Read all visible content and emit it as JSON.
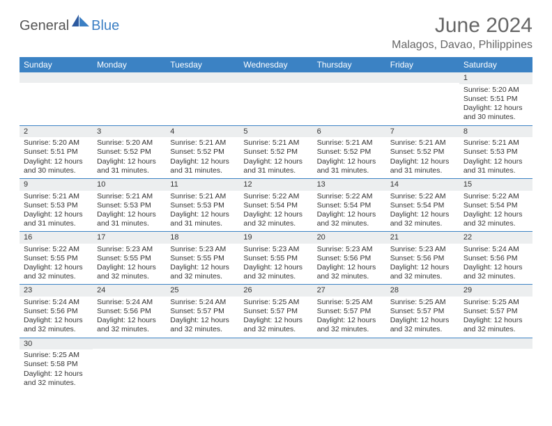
{
  "logo": {
    "general": "General",
    "blue": "Blue"
  },
  "header": {
    "title": "June 2024",
    "location": "Malagos, Davao, Philippines"
  },
  "colors": {
    "header_bg": "#3b82c4",
    "header_text": "#ffffff",
    "daynum_bg": "#eceeef",
    "border": "#3b82c4",
    "logo_blue": "#3b7fc4",
    "text": "#333333",
    "title_text": "#666666"
  },
  "dayLabels": [
    "Sunday",
    "Monday",
    "Tuesday",
    "Wednesday",
    "Thursday",
    "Friday",
    "Saturday"
  ],
  "weeks": [
    [
      {
        "n": "",
        "c": ""
      },
      {
        "n": "",
        "c": ""
      },
      {
        "n": "",
        "c": ""
      },
      {
        "n": "",
        "c": ""
      },
      {
        "n": "",
        "c": ""
      },
      {
        "n": "",
        "c": ""
      },
      {
        "n": "1",
        "c": "Sunrise: 5:20 AM\nSunset: 5:51 PM\nDaylight: 12 hours and 30 minutes."
      }
    ],
    [
      {
        "n": "2",
        "c": "Sunrise: 5:20 AM\nSunset: 5:51 PM\nDaylight: 12 hours and 30 minutes."
      },
      {
        "n": "3",
        "c": "Sunrise: 5:20 AM\nSunset: 5:52 PM\nDaylight: 12 hours and 31 minutes."
      },
      {
        "n": "4",
        "c": "Sunrise: 5:21 AM\nSunset: 5:52 PM\nDaylight: 12 hours and 31 minutes."
      },
      {
        "n": "5",
        "c": "Sunrise: 5:21 AM\nSunset: 5:52 PM\nDaylight: 12 hours and 31 minutes."
      },
      {
        "n": "6",
        "c": "Sunrise: 5:21 AM\nSunset: 5:52 PM\nDaylight: 12 hours and 31 minutes."
      },
      {
        "n": "7",
        "c": "Sunrise: 5:21 AM\nSunset: 5:52 PM\nDaylight: 12 hours and 31 minutes."
      },
      {
        "n": "8",
        "c": "Sunrise: 5:21 AM\nSunset: 5:53 PM\nDaylight: 12 hours and 31 minutes."
      }
    ],
    [
      {
        "n": "9",
        "c": "Sunrise: 5:21 AM\nSunset: 5:53 PM\nDaylight: 12 hours and 31 minutes."
      },
      {
        "n": "10",
        "c": "Sunrise: 5:21 AM\nSunset: 5:53 PM\nDaylight: 12 hours and 31 minutes."
      },
      {
        "n": "11",
        "c": "Sunrise: 5:21 AM\nSunset: 5:53 PM\nDaylight: 12 hours and 31 minutes."
      },
      {
        "n": "12",
        "c": "Sunrise: 5:22 AM\nSunset: 5:54 PM\nDaylight: 12 hours and 32 minutes."
      },
      {
        "n": "13",
        "c": "Sunrise: 5:22 AM\nSunset: 5:54 PM\nDaylight: 12 hours and 32 minutes."
      },
      {
        "n": "14",
        "c": "Sunrise: 5:22 AM\nSunset: 5:54 PM\nDaylight: 12 hours and 32 minutes."
      },
      {
        "n": "15",
        "c": "Sunrise: 5:22 AM\nSunset: 5:54 PM\nDaylight: 12 hours and 32 minutes."
      }
    ],
    [
      {
        "n": "16",
        "c": "Sunrise: 5:22 AM\nSunset: 5:55 PM\nDaylight: 12 hours and 32 minutes."
      },
      {
        "n": "17",
        "c": "Sunrise: 5:23 AM\nSunset: 5:55 PM\nDaylight: 12 hours and 32 minutes."
      },
      {
        "n": "18",
        "c": "Sunrise: 5:23 AM\nSunset: 5:55 PM\nDaylight: 12 hours and 32 minutes."
      },
      {
        "n": "19",
        "c": "Sunrise: 5:23 AM\nSunset: 5:55 PM\nDaylight: 12 hours and 32 minutes."
      },
      {
        "n": "20",
        "c": "Sunrise: 5:23 AM\nSunset: 5:56 PM\nDaylight: 12 hours and 32 minutes."
      },
      {
        "n": "21",
        "c": "Sunrise: 5:23 AM\nSunset: 5:56 PM\nDaylight: 12 hours and 32 minutes."
      },
      {
        "n": "22",
        "c": "Sunrise: 5:24 AM\nSunset: 5:56 PM\nDaylight: 12 hours and 32 minutes."
      }
    ],
    [
      {
        "n": "23",
        "c": "Sunrise: 5:24 AM\nSunset: 5:56 PM\nDaylight: 12 hours and 32 minutes."
      },
      {
        "n": "24",
        "c": "Sunrise: 5:24 AM\nSunset: 5:56 PM\nDaylight: 12 hours and 32 minutes."
      },
      {
        "n": "25",
        "c": "Sunrise: 5:24 AM\nSunset: 5:57 PM\nDaylight: 12 hours and 32 minutes."
      },
      {
        "n": "26",
        "c": "Sunrise: 5:25 AM\nSunset: 5:57 PM\nDaylight: 12 hours and 32 minutes."
      },
      {
        "n": "27",
        "c": "Sunrise: 5:25 AM\nSunset: 5:57 PM\nDaylight: 12 hours and 32 minutes."
      },
      {
        "n": "28",
        "c": "Sunrise: 5:25 AM\nSunset: 5:57 PM\nDaylight: 12 hours and 32 minutes."
      },
      {
        "n": "29",
        "c": "Sunrise: 5:25 AM\nSunset: 5:57 PM\nDaylight: 12 hours and 32 minutes."
      }
    ],
    [
      {
        "n": "30",
        "c": "Sunrise: 5:25 AM\nSunset: 5:58 PM\nDaylight: 12 hours and 32 minutes."
      },
      {
        "n": "",
        "c": ""
      },
      {
        "n": "",
        "c": ""
      },
      {
        "n": "",
        "c": ""
      },
      {
        "n": "",
        "c": ""
      },
      {
        "n": "",
        "c": ""
      },
      {
        "n": "",
        "c": ""
      }
    ]
  ]
}
